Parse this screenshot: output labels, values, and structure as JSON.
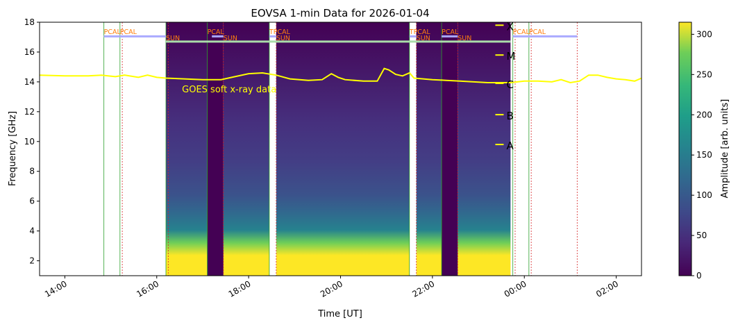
{
  "chart_data": {
    "type": "heatmap",
    "title": "EOVSA 1-min Data for 2026-01-04",
    "xlabel": "Time [UT]",
    "ylabel": "Frequency [GHz]",
    "x_range_hours": [
      13.45,
      26.55
    ],
    "ylim": [
      1.0,
      18.0
    ],
    "x_tick_values": [
      14,
      16,
      18,
      20,
      22,
      24,
      26
    ],
    "x_tick_labels": [
      "14:00",
      "16:00",
      "18:00",
      "20:00",
      "22:00",
      "00:00",
      "02:00"
    ],
    "y_ticks": [
      2,
      4,
      6,
      8,
      10,
      12,
      14,
      16,
      18
    ],
    "colorbar": {
      "label": "Amplitude [arb. units]",
      "range": [
        0,
        315
      ],
      "ticks": [
        0,
        50,
        100,
        150,
        200,
        250,
        300
      ],
      "colormap": "viridis"
    },
    "observing_segments": [
      {
        "start": 16.2,
        "end": 17.1
      },
      {
        "start": 17.45,
        "end": 18.45
      },
      {
        "start": 18.6,
        "end": 21.5
      },
      {
        "start": 21.65,
        "end": 22.2
      },
      {
        "start": 22.55,
        "end": 23.7
      }
    ],
    "dark_segments": [
      {
        "start": 17.1,
        "end": 17.45
      },
      {
        "start": 22.2,
        "end": 22.55
      }
    ],
    "scan_labels": [
      {
        "text": "PCAL",
        "time": 14.85,
        "freq": 17.2
      },
      {
        "text": "PCAL",
        "time": 15.2,
        "freq": 17.2
      },
      {
        "text": "SUN",
        "time": 16.2,
        "freq": 16.8
      },
      {
        "text": "PCAL",
        "time": 17.1,
        "freq": 17.2
      },
      {
        "text": "SUN",
        "time": 17.45,
        "freq": 16.8
      },
      {
        "text": "TPCAL",
        "time": 18.45,
        "freq": 17.2
      },
      {
        "text": "SUN",
        "time": 18.6,
        "freq": 16.8
      },
      {
        "text": "TPCAL",
        "time": 21.5,
        "freq": 17.2
      },
      {
        "text": "SUN",
        "time": 21.65,
        "freq": 16.8
      },
      {
        "text": "PCAL",
        "time": 22.2,
        "freq": 17.2
      },
      {
        "text": "SUN",
        "time": 22.55,
        "freq": 16.8
      },
      {
        "text": "PCAL",
        "time": 23.75,
        "freq": 17.2
      },
      {
        "text": "PCAL",
        "time": 24.1,
        "freq": 17.2
      }
    ],
    "scan_bars": [
      {
        "start": 14.85,
        "end": 15.2,
        "freq": 17.05,
        "color": "#aaaaff"
      },
      {
        "start": 15.2,
        "end": 16.2,
        "freq": 17.05,
        "color": "#aaaaff"
      },
      {
        "start": 17.2,
        "end": 17.45,
        "freq": 17.05,
        "color": "#aaaaff"
      },
      {
        "start": 18.45,
        "end": 18.6,
        "freq": 17.05,
        "color": "#aaaaff"
      },
      {
        "start": 21.5,
        "end": 21.65,
        "freq": 17.05,
        "color": "#aaaaff"
      },
      {
        "start": 22.2,
        "end": 22.55,
        "freq": 17.05,
        "color": "#aaaaff"
      },
      {
        "start": 23.75,
        "end": 25.15,
        "freq": 17.05,
        "color": "#aaaaff"
      },
      {
        "start": 16.2,
        "end": 23.7,
        "freq": 16.7,
        "color": "#aaddaa"
      }
    ],
    "green_lines": [
      14.85,
      15.2,
      16.2,
      17.1,
      18.45,
      21.5,
      22.2,
      23.75,
      24.1
    ],
    "red_dashed_lines": [
      15.25,
      16.25,
      17.45,
      18.6,
      21.65,
      22.55,
      23.8,
      24.15,
      25.15
    ],
    "goes": {
      "label": "GOES soft x-ray data",
      "label_position": {
        "time": 16.55,
        "freq": 13.3
      },
      "color": "#ffff00",
      "class_levels": [
        {
          "label": "A",
          "freq": 9.8
        },
        {
          "label": "B",
          "freq": 11.8
        },
        {
          "label": "C",
          "freq": 13.9
        },
        {
          "label": "M",
          "freq": 15.8
        },
        {
          "label": "X",
          "freq": 17.8
        }
      ],
      "times": [
        13.45,
        14.0,
        14.5,
        14.8,
        15.1,
        15.3,
        15.6,
        15.8,
        16.0,
        16.2,
        16.6,
        17.0,
        17.4,
        17.7,
        18.0,
        18.3,
        18.6,
        18.9,
        19.3,
        19.6,
        19.8,
        19.95,
        20.1,
        20.5,
        20.8,
        20.95,
        21.05,
        21.2,
        21.35,
        21.5,
        21.6,
        21.8,
        22.0,
        22.3,
        22.6,
        22.9,
        23.2,
        23.5,
        23.7,
        24.0,
        24.3,
        24.6,
        24.8,
        25.0,
        25.2,
        25.4,
        25.6,
        25.8,
        26.0,
        26.2,
        26.4,
        26.55
      ],
      "values": [
        14.45,
        14.4,
        14.4,
        14.45,
        14.35,
        14.45,
        14.3,
        14.45,
        14.3,
        14.25,
        14.2,
        14.15,
        14.15,
        14.35,
        14.55,
        14.6,
        14.45,
        14.2,
        14.1,
        14.15,
        14.55,
        14.3,
        14.15,
        14.05,
        14.05,
        14.9,
        14.8,
        14.5,
        14.4,
        14.6,
        14.25,
        14.2,
        14.15,
        14.1,
        14.05,
        14.0,
        13.95,
        13.95,
        13.95,
        14.05,
        14.05,
        14.0,
        14.15,
        13.95,
        14.05,
        14.45,
        14.45,
        14.3,
        14.2,
        14.15,
        14.05,
        14.25
      ]
    }
  }
}
